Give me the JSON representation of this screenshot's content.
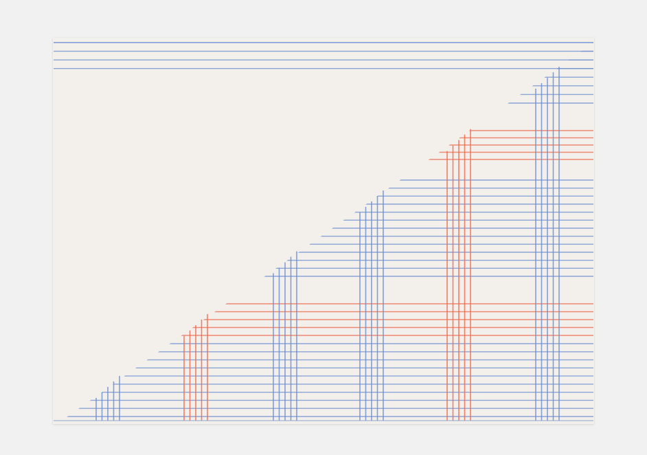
{
  "artwork": {
    "description_label": "",
    "colors": {
      "background": "#f1f1f1",
      "paper": "#f3f0ec",
      "blue_line": "#6f8fd0",
      "red_line": "#ee6b4f",
      "bottom_line": "#8fa6cf"
    },
    "motif": "pencil-line-staircase",
    "line_groups": [
      {
        "color": "blue",
        "count": 8
      },
      {
        "color": "red",
        "count": 5
      },
      {
        "color": "blue",
        "count": 13
      },
      {
        "color": "red",
        "count": 5
      },
      {
        "color": "blue",
        "count": 10
      }
    ],
    "column_groups": [
      {
        "color": "blue",
        "lines": 5
      },
      {
        "color": "red",
        "lines": 5
      },
      {
        "color": "blue",
        "lines": 5
      },
      {
        "color": "blue",
        "lines": 5
      },
      {
        "color": "red",
        "lines": 5
      },
      {
        "color": "blue",
        "lines": 5
      }
    ]
  }
}
